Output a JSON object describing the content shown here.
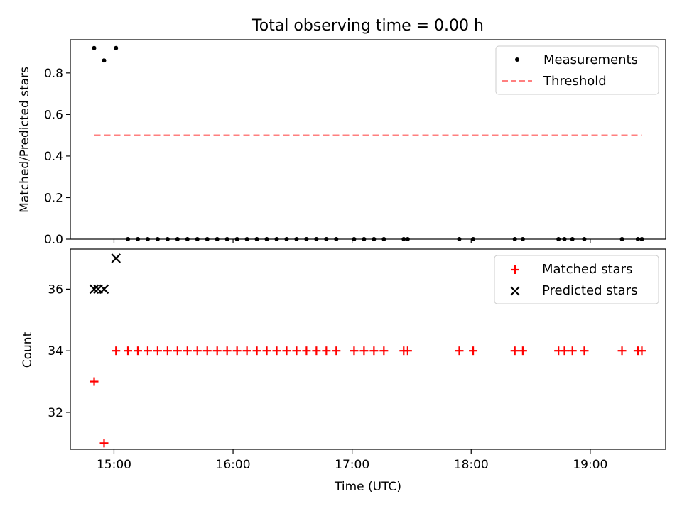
{
  "chart_data": [
    {
      "type": "scatter",
      "title": "Total observing time = 0.00 h",
      "xlabel": "",
      "ylabel": "Matched/Predicted stars",
      "xlim": [
        "14:38",
        "19:38"
      ],
      "ylim": [
        0,
        0.96
      ],
      "yticks": [
        0.0,
        0.2,
        0.4,
        0.6,
        0.8
      ],
      "ytick_labels": [
        "0.0",
        "0.2",
        "0.4",
        "0.6",
        "0.8"
      ],
      "legend_position": "top-right",
      "series": [
        {
          "name": "Measurements",
          "kind": "scatter",
          "marker": "dot",
          "color": "#000000",
          "x": [
            "14:50",
            "14:55",
            "15:01",
            "15:07",
            "15:12",
            "15:17",
            "15:22",
            "15:27",
            "15:32",
            "15:37",
            "15:42",
            "15:47",
            "15:52",
            "15:57",
            "16:02",
            "16:07",
            "16:12",
            "16:17",
            "16:22",
            "16:27",
            "16:32",
            "16:37",
            "16:42",
            "16:47",
            "16:52",
            "17:01",
            "17:06",
            "17:11",
            "17:16",
            "17:26",
            "17:28",
            "17:54",
            "18:01",
            "18:22",
            "18:26",
            "18:44",
            "18:47",
            "18:51",
            "18:57",
            "19:16",
            "19:24",
            "19:26"
          ],
          "y": [
            0.92,
            0.86,
            0.92,
            0,
            0,
            0,
            0,
            0,
            0,
            0,
            0,
            0,
            0,
            0,
            0,
            0,
            0,
            0,
            0,
            0,
            0,
            0,
            0,
            0,
            0,
            0,
            0,
            0,
            0,
            0,
            0,
            0,
            0,
            0,
            0,
            0,
            0,
            0,
            0,
            0,
            0,
            0
          ]
        },
        {
          "name": "Threshold",
          "kind": "line",
          "style": "dashed",
          "color": "#ff7f7f",
          "x": [
            "14:50",
            "19:26"
          ],
          "y": [
            0.5,
            0.5
          ]
        }
      ]
    },
    {
      "type": "scatter",
      "title": "",
      "xlabel": "Time (UTC)",
      "ylabel": "Count",
      "xlim": [
        "14:38",
        "19:38"
      ],
      "ylim": [
        30.8,
        37.3
      ],
      "yticks": [
        32,
        34,
        36
      ],
      "ytick_labels": [
        "32",
        "34",
        "36"
      ],
      "xticks": [
        "15:00",
        "16:00",
        "17:00",
        "18:00",
        "19:00"
      ],
      "xtick_labels": [
        "15:00",
        "16:00",
        "17:00",
        "18:00",
        "19:00"
      ],
      "legend_position": "top-right",
      "series": [
        {
          "name": "Matched stars",
          "kind": "scatter",
          "marker": "plus",
          "color": "#ff0000",
          "x": [
            "14:50",
            "14:55",
            "15:01",
            "15:07",
            "15:12",
            "15:17",
            "15:22",
            "15:27",
            "15:32",
            "15:37",
            "15:42",
            "15:47",
            "15:52",
            "15:57",
            "16:02",
            "16:07",
            "16:12",
            "16:17",
            "16:22",
            "16:27",
            "16:32",
            "16:37",
            "16:42",
            "16:47",
            "16:52",
            "17:01",
            "17:06",
            "17:11",
            "17:16",
            "17:26",
            "17:28",
            "17:54",
            "18:01",
            "18:22",
            "18:26",
            "18:44",
            "18:47",
            "18:51",
            "18:57",
            "19:16",
            "19:24",
            "19:26"
          ],
          "y": [
            33,
            31,
            34,
            34,
            34,
            34,
            34,
            34,
            34,
            34,
            34,
            34,
            34,
            34,
            34,
            34,
            34,
            34,
            34,
            34,
            34,
            34,
            34,
            34,
            34,
            34,
            34,
            34,
            34,
            34,
            34,
            34,
            34,
            34,
            34,
            34,
            34,
            34,
            34,
            34,
            34,
            34
          ]
        },
        {
          "name": "Predicted stars",
          "kind": "scatter",
          "marker": "x",
          "color": "#000000",
          "x": [
            "14:50",
            "14:52",
            "14:55",
            "15:01"
          ],
          "y": [
            36,
            36,
            36,
            37
          ]
        }
      ]
    }
  ]
}
